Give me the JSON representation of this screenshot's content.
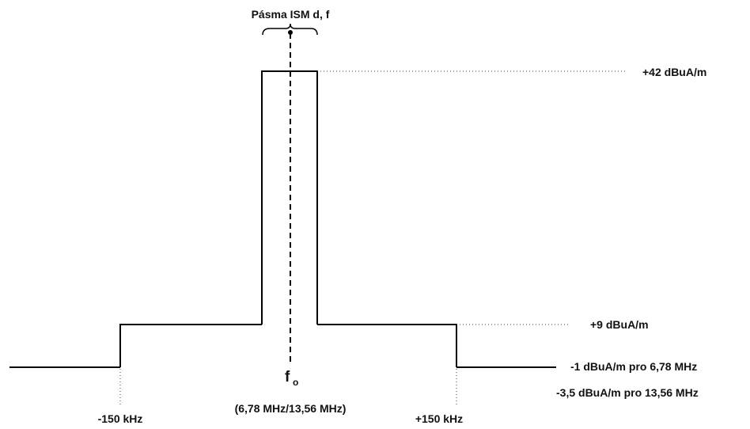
{
  "diagram": {
    "band_label": "Pásma ISM  d, f",
    "levels": {
      "peak": "+42 dBuA/m",
      "mid": "+9 dBuA/m",
      "low_678": "-1 dBuA/m pro 6,78 MHz",
      "low_1356": "-3,5 dBuA/m pro 13,56 MHz"
    },
    "frequency_axis": {
      "left_offset": "-150 kHz",
      "right_offset": "+150 kHz",
      "center_symbol": "f",
      "center_subscript": "o",
      "center_values": "(6,78 MHz/13,56 MHz)"
    }
  }
}
